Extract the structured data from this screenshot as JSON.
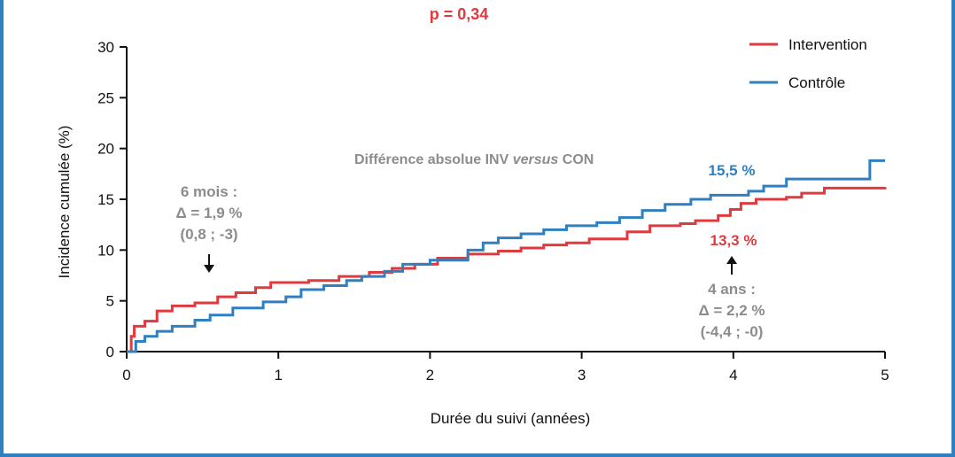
{
  "p_value": "p = 0,34",
  "chart_data": {
    "type": "line",
    "step": true,
    "xlabel": "Durée du suivi (années)",
    "ylabel": "Incidence cumulée (%)",
    "xlim": [
      0,
      5
    ],
    "ylim": [
      0,
      30
    ],
    "x_ticks": [
      "0",
      "1",
      "2",
      "3",
      "4",
      "5"
    ],
    "y_ticks": [
      "0",
      "5",
      "10",
      "15",
      "20",
      "25",
      "30"
    ],
    "grid": false,
    "legend_position": "top-right",
    "series": [
      {
        "name": "Intervention",
        "color": "#e03a3e",
        "points": [
          [
            0,
            0
          ],
          [
            0.03,
            1.5
          ],
          [
            0.05,
            2.5
          ],
          [
            0.12,
            3
          ],
          [
            0.2,
            4
          ],
          [
            0.3,
            4.5
          ],
          [
            0.45,
            4.8
          ],
          [
            0.6,
            5.4
          ],
          [
            0.72,
            5.8
          ],
          [
            0.85,
            6.3
          ],
          [
            0.95,
            6.8
          ],
          [
            1.2,
            7
          ],
          [
            1.4,
            7.4
          ],
          [
            1.6,
            7.8
          ],
          [
            1.75,
            8.2
          ],
          [
            1.9,
            8.6
          ],
          [
            2.05,
            9.2
          ],
          [
            2.25,
            9.6
          ],
          [
            2.45,
            9.9
          ],
          [
            2.6,
            10.2
          ],
          [
            2.75,
            10.5
          ],
          [
            2.9,
            10.7
          ],
          [
            3.05,
            11.1
          ],
          [
            3.3,
            11.8
          ],
          [
            3.45,
            12.4
          ],
          [
            3.65,
            12.6
          ],
          [
            3.75,
            12.9
          ],
          [
            3.9,
            13.4
          ],
          [
            3.98,
            14
          ],
          [
            4.05,
            14.6
          ],
          [
            4.15,
            15
          ],
          [
            4.35,
            15.2
          ],
          [
            4.45,
            15.6
          ],
          [
            4.6,
            16.1
          ],
          [
            5,
            16.2
          ]
        ]
      },
      {
        "name": "Contrôle",
        "color": "#2f7fc1",
        "points": [
          [
            0,
            0
          ],
          [
            0.06,
            1
          ],
          [
            0.12,
            1.5
          ],
          [
            0.2,
            2
          ],
          [
            0.3,
            2.5
          ],
          [
            0.45,
            3.1
          ],
          [
            0.55,
            3.6
          ],
          [
            0.7,
            4.3
          ],
          [
            0.9,
            4.9
          ],
          [
            1.05,
            5.4
          ],
          [
            1.15,
            6.1
          ],
          [
            1.3,
            6.5
          ],
          [
            1.45,
            7
          ],
          [
            1.55,
            7.4
          ],
          [
            1.7,
            7.9
          ],
          [
            1.82,
            8.6
          ],
          [
            2,
            9
          ],
          [
            2.25,
            10
          ],
          [
            2.35,
            10.7
          ],
          [
            2.45,
            11.2
          ],
          [
            2.6,
            11.6
          ],
          [
            2.75,
            12
          ],
          [
            2.9,
            12.4
          ],
          [
            3.1,
            12.7
          ],
          [
            3.25,
            13.2
          ],
          [
            3.4,
            13.9
          ],
          [
            3.55,
            14.5
          ],
          [
            3.72,
            15
          ],
          [
            3.85,
            15.4
          ],
          [
            4.1,
            15.8
          ],
          [
            4.2,
            16.3
          ],
          [
            4.35,
            17
          ],
          [
            4.9,
            18.8
          ],
          [
            5,
            18.8
          ]
        ]
      }
    ],
    "annotations": [
      {
        "id": "six-months",
        "lines": [
          "6 mois :",
          "Δ = 1,9 %",
          "(0,8 ; -3)"
        ],
        "color": "#8c8c8c",
        "arrow": "down"
      },
      {
        "id": "four-years",
        "lines": [
          "4 ans :",
          "Δ = 2,2 %",
          "(-4,4 ; -0)"
        ],
        "color": "#8c8c8c",
        "arrow": "up"
      },
      {
        "id": "diff-label",
        "text_prefix": "Différence absolue INV ",
        "text_italic": "versus",
        "text_suffix": " CON",
        "color": "#8c8c8c"
      },
      {
        "id": "control-value",
        "text": "15,5 %",
        "color": "#2f7fc1"
      },
      {
        "id": "intervention-value",
        "text": "13,3 %",
        "color": "#e03a3e"
      }
    ]
  }
}
